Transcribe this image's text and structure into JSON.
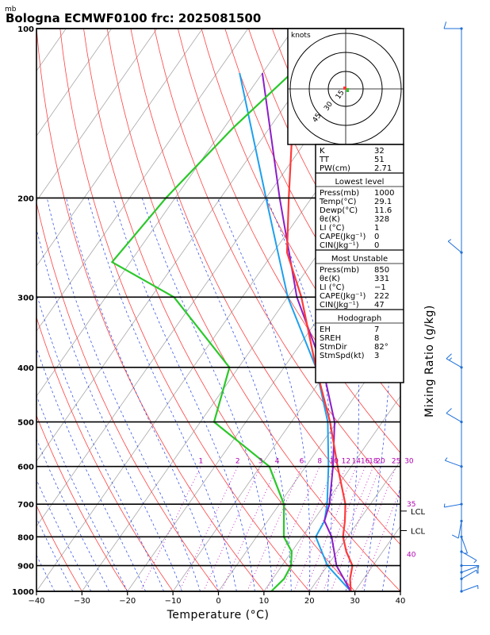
{
  "chart_data": {
    "type": "skew-t log-p sounding",
    "title": "Bologna ECMWF0100 frc: 2025081500",
    "pressure_unit": "mb",
    "xlabel": "Temperature (°C)",
    "ylabel_right": "Mixing Ratio (g/kg)",
    "x_ticks": [
      -40,
      -30,
      -20,
      -10,
      0,
      10,
      20,
      30,
      40
    ],
    "p_ticks": [
      100,
      200,
      300,
      400,
      500,
      600,
      700,
      800,
      900,
      1000
    ],
    "xlim": [
      -40,
      40
    ],
    "plim": [
      100,
      1000
    ],
    "mixing_ratio_labels": [
      "1",
      "2",
      "3",
      "4",
      "6",
      "8",
      "10",
      "12",
      "14",
      "16",
      "18",
      "20",
      "25",
      "30"
    ],
    "theta_labels": [
      "35",
      "40"
    ],
    "lcl_label": "LCL",
    "temperature": {
      "color": "#ff3a3a",
      "points": [
        [
          1000,
          29.1
        ],
        [
          950,
          27
        ],
        [
          900,
          25.5
        ],
        [
          850,
          22
        ],
        [
          800,
          19
        ],
        [
          750,
          17
        ],
        [
          700,
          14.5
        ],
        [
          600,
          7
        ],
        [
          500,
          -1.5
        ],
        [
          400,
          -13
        ],
        [
          300,
          -27
        ],
        [
          250,
          -37
        ],
        [
          200,
          -45
        ],
        [
          150,
          -55
        ],
        [
          100,
          -60
        ]
      ]
    },
    "dewpoint": {
      "color": "#2ac82a",
      "points": [
        [
          1000,
          11.6
        ],
        [
          950,
          12.5
        ],
        [
          900,
          12
        ],
        [
          850,
          10
        ],
        [
          800,
          6
        ],
        [
          700,
          1
        ],
        [
          600,
          -8
        ],
        [
          500,
          -27
        ],
        [
          400,
          -32
        ],
        [
          300,
          -55
        ],
        [
          260,
          -74
        ],
        [
          200,
          -72
        ],
        [
          150,
          -68
        ],
        [
          100,
          -60
        ]
      ]
    },
    "parcel_virtual": {
      "color": "#1ea0ee",
      "points": [
        [
          1000,
          29.1
        ],
        [
          900,
          20
        ],
        [
          800,
          13
        ],
        [
          750,
          12.5
        ],
        [
          700,
          10.5
        ],
        [
          600,
          5
        ],
        [
          500,
          -2
        ],
        [
          400,
          -13
        ],
        [
          300,
          -30
        ],
        [
          200,
          -50
        ],
        [
          120,
          -75
        ]
      ]
    },
    "parcel": {
      "color": "#8c1ec8",
      "points": [
        [
          1000,
          29.1
        ],
        [
          900,
          22
        ],
        [
          800,
          16.5
        ],
        [
          750,
          12.5
        ],
        [
          700,
          11
        ],
        [
          600,
          6
        ],
        [
          500,
          -0.5
        ],
        [
          400,
          -11.5
        ],
        [
          300,
          -28
        ],
        [
          200,
          -47
        ],
        [
          120,
          -70
        ]
      ]
    },
    "wind_barbs_kt": [
      {
        "p": 1000,
        "dir": 70,
        "spd": 5
      },
      {
        "p": 950,
        "dir": 60,
        "spd": 5
      },
      {
        "p": 925,
        "dir": 70,
        "spd": 10
      },
      {
        "p": 900,
        "dir": 90,
        "spd": 5
      },
      {
        "p": 850,
        "dir": 120,
        "spd": 5
      },
      {
        "p": 800,
        "dir": 160,
        "spd": 5
      },
      {
        "p": 750,
        "dir": 190,
        "spd": 10
      },
      {
        "p": 700,
        "dir": 260,
        "spd": 5
      },
      {
        "p": 600,
        "dir": 290,
        "spd": 5
      },
      {
        "p": 500,
        "dir": 300,
        "spd": 10
      },
      {
        "p": 400,
        "dir": 300,
        "spd": 15
      },
      {
        "p": 250,
        "dir": 310,
        "spd": 5
      },
      {
        "p": 100,
        "dir": 270,
        "spd": 10
      }
    ],
    "hodograph": {
      "label": "knots",
      "ring_labels": [
        "15",
        "30",
        "45"
      ]
    },
    "indices_table": {
      "top": [
        {
          "label": "K",
          "value": "32"
        },
        {
          "label": "TT",
          "value": "51"
        },
        {
          "label": "PW(cm)",
          "value": "2.71"
        }
      ],
      "lowest_level": {
        "header": "Lowest level",
        "rows": [
          {
            "label": "Press(mb)",
            "value": "1000"
          },
          {
            "label": "Temp(°C)",
            "value": "29.1"
          },
          {
            "label": "Dewp(°C)",
            "value": "11.6"
          },
          {
            "label": "θε(K)",
            "value": "328"
          },
          {
            "label": "LI (°C)",
            "value": "1"
          },
          {
            "label": "CAPE(Jkg⁻¹)",
            "value": "0"
          },
          {
            "label": "CIN(Jkg⁻¹)",
            "value": "0"
          }
        ]
      },
      "most_unstable": {
        "header": "Most Unstable",
        "rows": [
          {
            "label": "Press(mb)",
            "value": "850"
          },
          {
            "label": "θε(K)",
            "value": "331"
          },
          {
            "label": "LI (°C)",
            "value": "−1"
          },
          {
            "label": "CAPE(Jkg⁻¹)",
            "value": "222"
          },
          {
            "label": "CIN(Jkg⁻¹)",
            "value": "47"
          }
        ]
      },
      "hodograph": {
        "header": "Hodograph",
        "rows": [
          {
            "label": "EH",
            "value": "7"
          },
          {
            "label": "SREH",
            "value": "8"
          },
          {
            "label": "StmDir",
            "value": "82°"
          },
          {
            "label": "StmSpd(kt)",
            "value": "3"
          }
        ]
      }
    }
  }
}
